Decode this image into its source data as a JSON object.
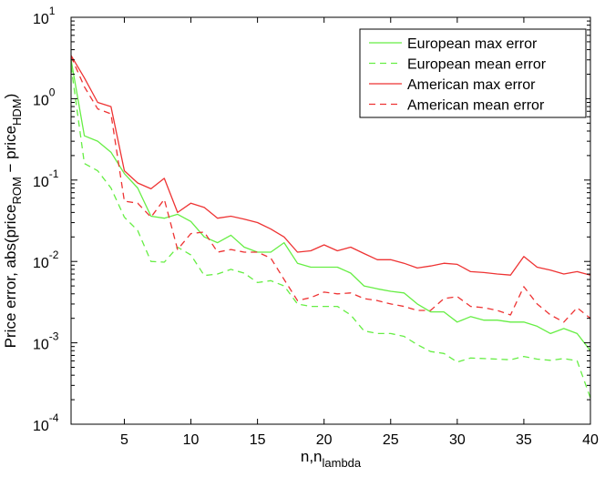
{
  "chart_data": {
    "type": "line",
    "yscale": "log",
    "xlabel": "n,n",
    "xlabel_sub": "lambda",
    "ylabel_parts": [
      "Price error, abs(price",
      "ROM",
      " − price",
      "HDM",
      ")"
    ],
    "xlim": [
      1,
      40
    ],
    "ylim": [
      0.0001,
      10
    ],
    "xticks": [
      5,
      10,
      15,
      20,
      25,
      30,
      35,
      40
    ],
    "xtick_labels": [
      "5",
      "10",
      "15",
      "20",
      "25",
      "30",
      "35",
      "40"
    ],
    "yticks": [
      0.0001,
      0.001,
      0.01,
      0.1,
      1,
      10
    ],
    "ytick_labels": [
      {
        "base": "10",
        "exp": "-4"
      },
      {
        "base": "10",
        "exp": "-3"
      },
      {
        "base": "10",
        "exp": "-2"
      },
      {
        "base": "10",
        "exp": "-1"
      },
      {
        "base": "10",
        "exp": "0"
      },
      {
        "base": "10",
        "exp": "1"
      }
    ],
    "grid": false,
    "legend_position": "top-right",
    "x": [
      1,
      2,
      3,
      4,
      5,
      6,
      7,
      8,
      9,
      10,
      11,
      12,
      13,
      14,
      15,
      16,
      17,
      18,
      19,
      20,
      21,
      22,
      23,
      24,
      25,
      26,
      27,
      28,
      29,
      30,
      31,
      32,
      33,
      34,
      35,
      36,
      37,
      38,
      39,
      40
    ],
    "series": [
      {
        "name": "European max error",
        "color": "#66ee44",
        "dash": "solid",
        "values": [
          3.0,
          0.35,
          0.3,
          0.22,
          0.12,
          0.08,
          0.036,
          0.034,
          0.038,
          0.031,
          0.02,
          0.017,
          0.021,
          0.015,
          0.013,
          0.013,
          0.017,
          0.0095,
          0.0085,
          0.0085,
          0.0085,
          0.0072,
          0.005,
          0.0046,
          0.0043,
          0.0041,
          0.003,
          0.0024,
          0.0024,
          0.0018,
          0.0021,
          0.0019,
          0.0019,
          0.0018,
          0.0018,
          0.0016,
          0.0013,
          0.0015,
          0.0013,
          0.0008
        ]
      },
      {
        "name": "European mean error",
        "color": "#66ee44",
        "dash": "dashed",
        "values": [
          2.5,
          0.16,
          0.13,
          0.08,
          0.035,
          0.024,
          0.01,
          0.0098,
          0.015,
          0.012,
          0.0067,
          0.007,
          0.008,
          0.0072,
          0.0055,
          0.0058,
          0.005,
          0.003,
          0.0028,
          0.0028,
          0.0028,
          0.0022,
          0.0014,
          0.0013,
          0.0013,
          0.0012,
          0.00095,
          0.00078,
          0.00074,
          0.00058,
          0.00065,
          0.00064,
          0.00063,
          0.00062,
          0.00068,
          0.00063,
          0.00061,
          0.00064,
          0.0006,
          0.00021
        ]
      },
      {
        "name": "American max error",
        "color": "#ee3333",
        "dash": "solid",
        "values": [
          3.4,
          1.8,
          0.9,
          0.8,
          0.13,
          0.092,
          0.078,
          0.105,
          0.04,
          0.052,
          0.046,
          0.034,
          0.036,
          0.033,
          0.03,
          0.025,
          0.02,
          0.013,
          0.0135,
          0.016,
          0.0135,
          0.015,
          0.0125,
          0.0105,
          0.0105,
          0.0095,
          0.0083,
          0.0088,
          0.0095,
          0.0092,
          0.0075,
          0.0073,
          0.007,
          0.0068,
          0.0115,
          0.0085,
          0.0078,
          0.007,
          0.0075,
          0.0068
        ]
      },
      {
        "name": "American mean error",
        "color": "#ee3333",
        "dash": "dashed",
        "values": [
          3.3,
          1.4,
          0.75,
          0.65,
          0.055,
          0.052,
          0.035,
          0.058,
          0.014,
          0.022,
          0.023,
          0.013,
          0.014,
          0.013,
          0.013,
          0.011,
          0.006,
          0.0033,
          0.0036,
          0.0042,
          0.004,
          0.0041,
          0.0035,
          0.0033,
          0.003,
          0.0028,
          0.0025,
          0.0025,
          0.0035,
          0.0037,
          0.0028,
          0.0027,
          0.0025,
          0.0022,
          0.0049,
          0.003,
          0.0022,
          0.0018,
          0.0027,
          0.002
        ]
      }
    ]
  }
}
